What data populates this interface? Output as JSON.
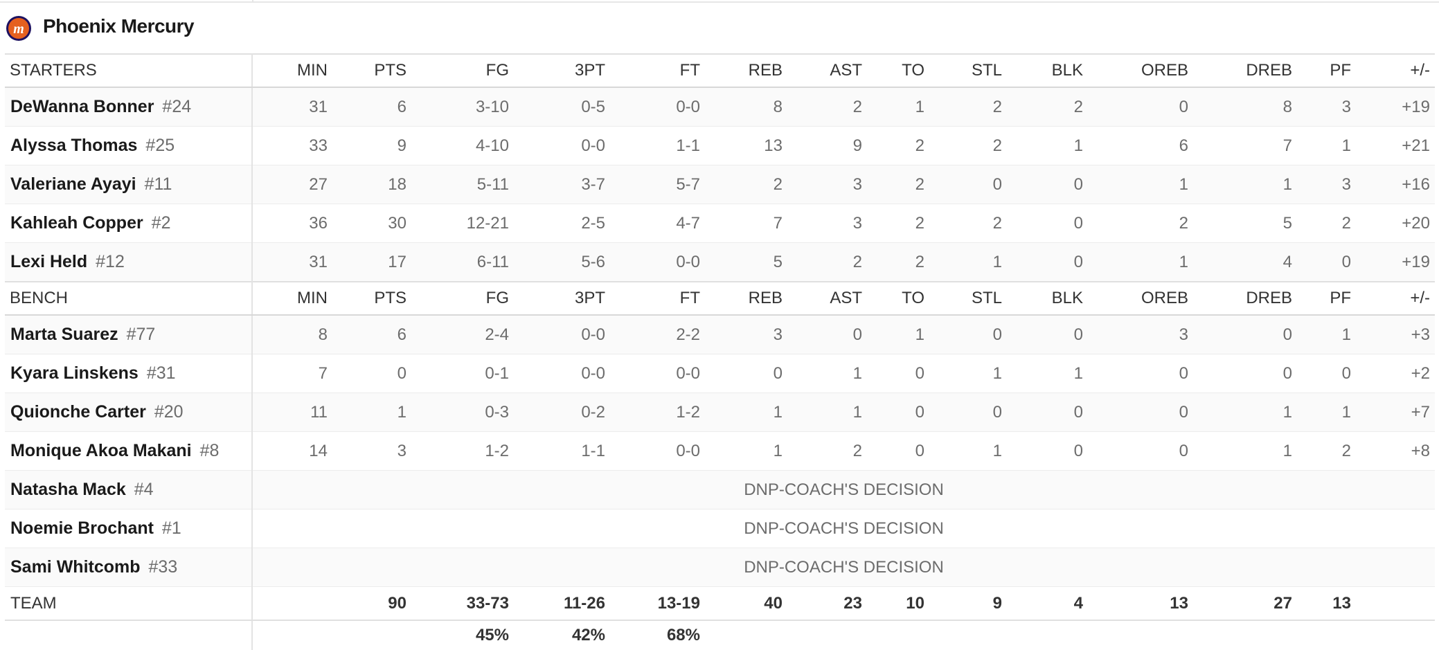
{
  "team": {
    "name": "Phoenix Mercury"
  },
  "starters": {
    "label": "STARTERS",
    "columns": [
      "MIN",
      "PTS",
      "FG",
      "3PT",
      "FT",
      "REB",
      "AST",
      "TO",
      "STL",
      "BLK",
      "OREB",
      "DREB",
      "PF",
      "+/-"
    ],
    "rows": [
      {
        "name": "DeWanna Bonner",
        "number": "#24",
        "stats": [
          31,
          6,
          "3-10",
          "0-5",
          "0-0",
          8,
          2,
          1,
          2,
          2,
          0,
          8,
          3,
          "+19"
        ]
      },
      {
        "name": "Alyssa Thomas",
        "number": "#25",
        "stats": [
          33,
          9,
          "4-10",
          "0-0",
          "1-1",
          13,
          9,
          2,
          2,
          1,
          6,
          7,
          1,
          "+21"
        ]
      },
      {
        "name": "Valeriane Ayayi",
        "number": "#11",
        "stats": [
          27,
          18,
          "5-11",
          "3-7",
          "5-7",
          2,
          3,
          2,
          0,
          0,
          1,
          1,
          3,
          "+16"
        ]
      },
      {
        "name": "Kahleah Copper",
        "number": "#2",
        "stats": [
          36,
          30,
          "12-21",
          "2-5",
          "4-7",
          7,
          3,
          2,
          2,
          0,
          2,
          5,
          2,
          "+20"
        ]
      },
      {
        "name": "Lexi Held",
        "number": "#12",
        "stats": [
          31,
          17,
          "6-11",
          "5-6",
          "0-0",
          5,
          2,
          2,
          1,
          0,
          1,
          4,
          0,
          "+19"
        ]
      }
    ]
  },
  "bench": {
    "label": "BENCH",
    "columns": [
      "MIN",
      "PTS",
      "FG",
      "3PT",
      "FT",
      "REB",
      "AST",
      "TO",
      "STL",
      "BLK",
      "OREB",
      "DREB",
      "PF",
      "+/-"
    ],
    "rows": [
      {
        "name": "Marta Suarez",
        "number": "#77",
        "stats": [
          8,
          6,
          "2-4",
          "0-0",
          "2-2",
          3,
          0,
          1,
          0,
          0,
          3,
          0,
          1,
          "+3"
        ]
      },
      {
        "name": "Kyara Linskens",
        "number": "#31",
        "stats": [
          7,
          0,
          "0-1",
          "0-0",
          "0-0",
          0,
          1,
          0,
          1,
          1,
          0,
          0,
          0,
          "+2"
        ]
      },
      {
        "name": "Quionche Carter",
        "number": "#20",
        "stats": [
          11,
          1,
          "0-3",
          "0-2",
          "1-2",
          1,
          1,
          0,
          0,
          0,
          0,
          1,
          1,
          "+7"
        ]
      },
      {
        "name": "Monique Akoa Makani",
        "number": "#8",
        "stats": [
          14,
          3,
          "1-2",
          "1-1",
          "0-0",
          1,
          2,
          0,
          1,
          0,
          0,
          1,
          2,
          "+8"
        ]
      },
      {
        "name": "Natasha Mack",
        "number": "#4",
        "dnp": "DNP-COACH'S DECISION"
      },
      {
        "name": "Noemie Brochant",
        "number": "#1",
        "dnp": "DNP-COACH'S DECISION"
      },
      {
        "name": "Sami Whitcomb",
        "number": "#33",
        "dnp": "DNP-COACH'S DECISION"
      }
    ]
  },
  "totals": {
    "label": "TEAM",
    "values": [
      90,
      "33-73",
      "11-26",
      "13-19",
      40,
      23,
      10,
      9,
      4,
      13,
      27,
      13
    ]
  },
  "percentages": [
    "45%",
    "42%",
    "68%"
  ]
}
